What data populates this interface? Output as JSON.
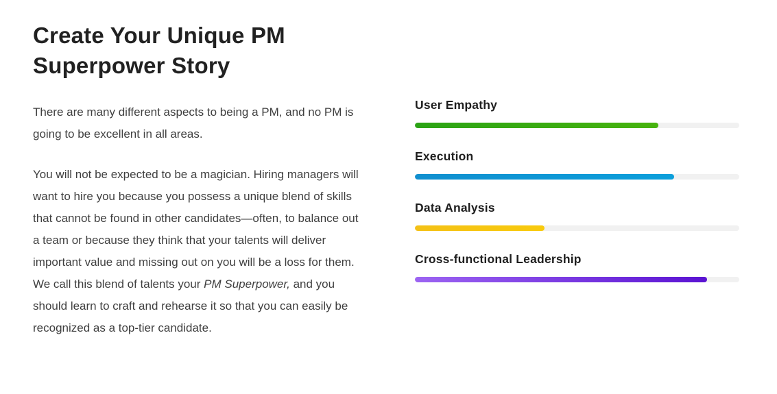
{
  "title": "Create Your Unique PM Superpower Story",
  "paragraphs": {
    "intro": "There are many different aspects to being a PM, and no PM is going to be excellent in all areas.",
    "body_before_italic": "You will not be expected to be a magician. Hiring managers will want to hire you because you possess a unique blend of skills that cannot be found in other candidates—often, to balance out a team or because they think that your talents will deliver important value and missing out on you will be a loss for them. We call this blend of talents your ",
    "body_italic": "PM Superpower,",
    "body_after_italic": " and you should learn to craft and rehearse it so that you can easily be recognized as a top-tier candidate."
  },
  "skills": [
    {
      "label": "User Empathy",
      "percent": 75,
      "color_start": "#2ba315",
      "color_end": "#47b30e"
    },
    {
      "label": "Execution",
      "percent": 80,
      "color_start": "#118fcf",
      "color_end": "#0c9fdb"
    },
    {
      "label": "Data Analysis",
      "percent": 40,
      "color_start": "#f4c116",
      "color_end": "#f8ca0d"
    },
    {
      "label": "Cross-functional Leadership",
      "percent": 90,
      "color_start": "#9c64f2",
      "color_end": "#5a13d2"
    }
  ],
  "colors": {
    "track": "#f1f1f1",
    "heading": "#212121",
    "body_text": "#3f3f3f"
  }
}
